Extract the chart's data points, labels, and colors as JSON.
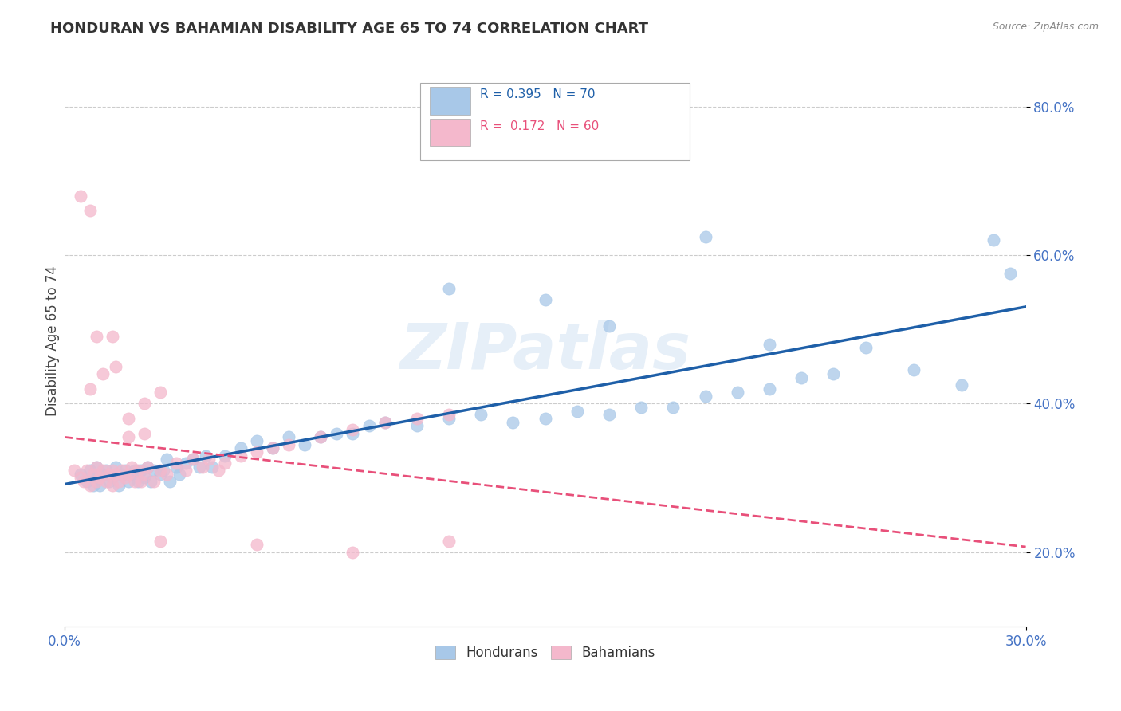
{
  "title": "HONDURAN VS BAHAMIAN DISABILITY AGE 65 TO 74 CORRELATION CHART",
  "source_text": "Source: ZipAtlas.com",
  "ylabel": "Disability Age 65 to 74",
  "ytick_vals": [
    0.2,
    0.4,
    0.6,
    0.8
  ],
  "xmin": 0.0,
  "xmax": 0.3,
  "ymin": 0.1,
  "ymax": 0.87,
  "legend_R_blue": "0.395",
  "legend_N_blue": "70",
  "legend_R_pink": "0.172",
  "legend_N_pink": "60",
  "legend_label_blue": "Hondurans",
  "legend_label_pink": "Bahamians",
  "blue_color": "#A8C8E8",
  "pink_color": "#F4B8CC",
  "blue_line_color": "#1E5FA8",
  "pink_line_color": "#E8507A",
  "watermark": "ZIPatlas",
  "blue_scatter_x": [
    0.005,
    0.007,
    0.008,
    0.009,
    0.01,
    0.01,
    0.011,
    0.012,
    0.013,
    0.014,
    0.015,
    0.016,
    0.017,
    0.018,
    0.019,
    0.02,
    0.021,
    0.022,
    0.023,
    0.024,
    0.025,
    0.026,
    0.027,
    0.028,
    0.03,
    0.031,
    0.032,
    0.033,
    0.035,
    0.036,
    0.038,
    0.04,
    0.042,
    0.044,
    0.046,
    0.05,
    0.055,
    0.06,
    0.065,
    0.07,
    0.075,
    0.08,
    0.085,
    0.09,
    0.095,
    0.1,
    0.11,
    0.12,
    0.13,
    0.14,
    0.15,
    0.16,
    0.17,
    0.18,
    0.19,
    0.2,
    0.21,
    0.22,
    0.23,
    0.24,
    0.12,
    0.15,
    0.17,
    0.2,
    0.22,
    0.25,
    0.265,
    0.28,
    0.29,
    0.295
  ],
  "blue_scatter_y": [
    0.305,
    0.295,
    0.31,
    0.29,
    0.3,
    0.315,
    0.29,
    0.305,
    0.31,
    0.295,
    0.3,
    0.315,
    0.29,
    0.305,
    0.31,
    0.295,
    0.305,
    0.31,
    0.295,
    0.31,
    0.3,
    0.315,
    0.295,
    0.31,
    0.305,
    0.31,
    0.325,
    0.295,
    0.315,
    0.305,
    0.32,
    0.325,
    0.315,
    0.33,
    0.315,
    0.33,
    0.34,
    0.35,
    0.34,
    0.355,
    0.345,
    0.355,
    0.36,
    0.36,
    0.37,
    0.375,
    0.37,
    0.38,
    0.385,
    0.375,
    0.38,
    0.39,
    0.385,
    0.395,
    0.395,
    0.41,
    0.415,
    0.42,
    0.435,
    0.44,
    0.555,
    0.54,
    0.505,
    0.625,
    0.48,
    0.475,
    0.445,
    0.425,
    0.62,
    0.575
  ],
  "pink_scatter_x": [
    0.003,
    0.005,
    0.006,
    0.007,
    0.008,
    0.009,
    0.01,
    0.01,
    0.011,
    0.012,
    0.013,
    0.014,
    0.015,
    0.015,
    0.016,
    0.017,
    0.018,
    0.019,
    0.02,
    0.021,
    0.022,
    0.023,
    0.024,
    0.025,
    0.026,
    0.028,
    0.03,
    0.032,
    0.035,
    0.038,
    0.04,
    0.043,
    0.045,
    0.048,
    0.05,
    0.055,
    0.06,
    0.065,
    0.07,
    0.08,
    0.09,
    0.1,
    0.11,
    0.12,
    0.008,
    0.012,
    0.016,
    0.02,
    0.025,
    0.03,
    0.005,
    0.008,
    0.01,
    0.015,
    0.02,
    0.025,
    0.03,
    0.06,
    0.09,
    0.12
  ],
  "pink_scatter_y": [
    0.31,
    0.3,
    0.295,
    0.31,
    0.29,
    0.305,
    0.295,
    0.315,
    0.3,
    0.31,
    0.295,
    0.305,
    0.31,
    0.29,
    0.305,
    0.295,
    0.31,
    0.3,
    0.305,
    0.315,
    0.295,
    0.31,
    0.295,
    0.305,
    0.315,
    0.295,
    0.31,
    0.305,
    0.32,
    0.31,
    0.325,
    0.315,
    0.325,
    0.31,
    0.32,
    0.33,
    0.335,
    0.34,
    0.345,
    0.355,
    0.365,
    0.375,
    0.38,
    0.385,
    0.42,
    0.44,
    0.45,
    0.355,
    0.4,
    0.415,
    0.68,
    0.66,
    0.49,
    0.49,
    0.38,
    0.36,
    0.215,
    0.21,
    0.2,
    0.215
  ]
}
